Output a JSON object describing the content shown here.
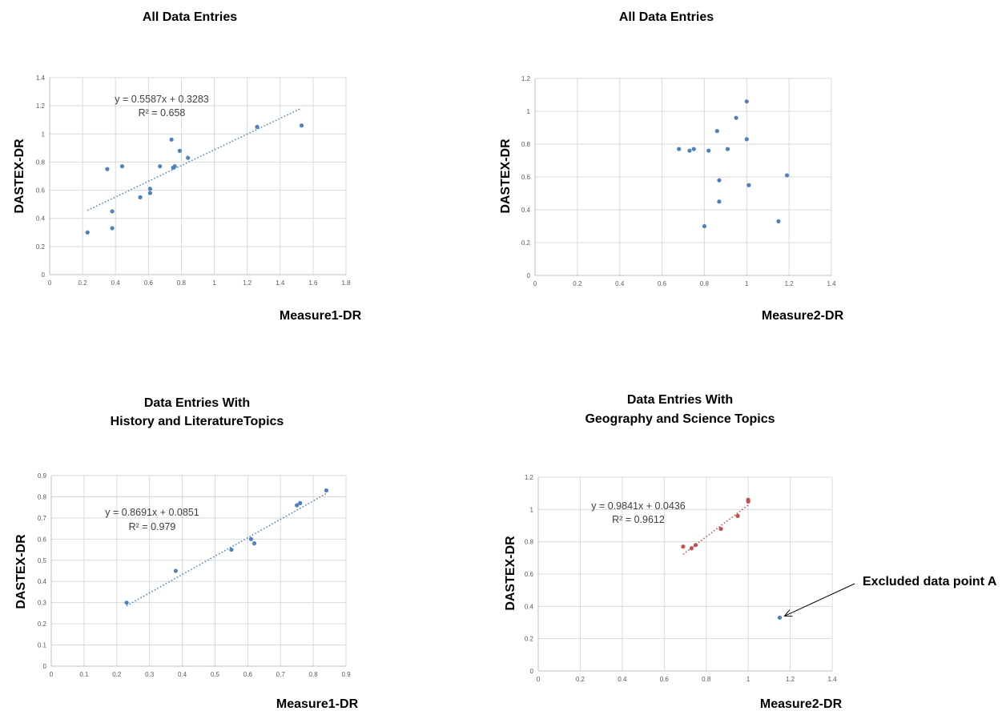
{
  "chart_data": [
    {
      "type": "scatter",
      "title": [
        "All Data Entries"
      ],
      "xlabel": "Measure1-DR",
      "ylabel": "DASTEX-DR",
      "xlim": [
        0,
        1.8
      ],
      "ylim": [
        0,
        1.4
      ],
      "xticks": [
        "0",
        "0.2",
        "0.4",
        "0.6",
        "0.8",
        "1",
        "1.2",
        "1.4",
        "1.6",
        "1.8"
      ],
      "yticks": [
        "0",
        "0.2",
        "0.4",
        "0.6",
        "0.8",
        "1",
        "1.2",
        "1.4"
      ],
      "grid": true,
      "series": [
        {
          "color": "#4f81bd",
          "points": [
            [
              0.23,
              0.3
            ],
            [
              0.35,
              0.75
            ],
            [
              0.38,
              0.33
            ],
            [
              0.38,
              0.45
            ],
            [
              0.44,
              0.77
            ],
            [
              0.55,
              0.55
            ],
            [
              0.61,
              0.61
            ],
            [
              0.61,
              0.58
            ],
            [
              0.67,
              0.77
            ],
            [
              0.74,
              0.96
            ],
            [
              0.75,
              0.76
            ],
            [
              0.76,
              0.77
            ],
            [
              0.79,
              0.88
            ],
            [
              0.84,
              0.83
            ],
            [
              1.26,
              1.05
            ],
            [
              1.53,
              1.06
            ]
          ]
        }
      ],
      "trendline": {
        "slope": 0.5587,
        "intercept": 0.3283,
        "x_from": 0.23,
        "x_to": 1.53,
        "color": "#4f81bd"
      },
      "equation": "y = 0.5587x + 0.3283",
      "r2": "R² = 0.658"
    },
    {
      "type": "scatter",
      "title": [
        "All Data Entries"
      ],
      "xlabel": "Measure2-DR",
      "ylabel": "DASTEX-DR",
      "xlim": [
        0,
        1.4
      ],
      "ylim": [
        0,
        1.2
      ],
      "xticks": [
        "0",
        "0.2",
        "0.4",
        "0.6",
        "0.8",
        "1",
        "1.2",
        "1.4"
      ],
      "yticks": [
        "0",
        "0.2",
        "0.4",
        "0.6",
        "0.8",
        "1",
        "1.2"
      ],
      "grid": true,
      "series": [
        {
          "color": "#4f81bd",
          "points": [
            [
              0.68,
              0.77
            ],
            [
              0.73,
              0.76
            ],
            [
              0.75,
              0.77
            ],
            [
              0.8,
              0.3
            ],
            [
              0.82,
              0.76
            ],
            [
              0.86,
              0.88
            ],
            [
              0.87,
              0.58
            ],
            [
              0.87,
              0.45
            ],
            [
              0.91,
              0.77
            ],
            [
              0.95,
              0.96
            ],
            [
              1.0,
              1.06
            ],
            [
              1.0,
              0.83
            ],
            [
              1.01,
              0.55
            ],
            [
              1.15,
              0.33
            ],
            [
              1.19,
              0.61
            ]
          ]
        }
      ]
    },
    {
      "type": "scatter",
      "title": [
        "Data Entries With",
        "History and LiteratureTopics"
      ],
      "xlabel": "Measure1-DR",
      "ylabel": "DASTEX-DR",
      "xlim": [
        0,
        0.9
      ],
      "ylim": [
        0,
        0.9
      ],
      "xticks": [
        "0",
        "0.1",
        "0.2",
        "0.3",
        "0.4",
        "0.5",
        "0.6",
        "0.7",
        "0.8",
        "0.9"
      ],
      "yticks": [
        "0",
        "0.1",
        "0.2",
        "0.3",
        "0.4",
        "0.5",
        "0.6",
        "0.7",
        "0.8",
        "0.9"
      ],
      "grid": true,
      "series": [
        {
          "color": "#4f81bd",
          "points": [
            [
              0.23,
              0.3
            ],
            [
              0.38,
              0.45
            ],
            [
              0.55,
              0.55
            ],
            [
              0.61,
              0.6
            ],
            [
              0.62,
              0.58
            ],
            [
              0.75,
              0.76
            ],
            [
              0.76,
              0.77
            ],
            [
              0.84,
              0.83
            ]
          ]
        }
      ],
      "trendline": {
        "slope": 0.8691,
        "intercept": 0.0851,
        "x_from": 0.23,
        "x_to": 0.84,
        "color": "#4f81bd"
      },
      "equation": "y = 0.8691x + 0.0851",
      "r2": "R² = 0.979"
    },
    {
      "type": "scatter",
      "title": [
        "Data Entries With",
        "Geography and Science Topics"
      ],
      "xlabel": "Measure2-DR",
      "ylabel": "DASTEX-DR",
      "xlim": [
        0,
        1.4
      ],
      "ylim": [
        0,
        1.2
      ],
      "xticks": [
        "0",
        "0.2",
        "0.4",
        "0.6",
        "0.8",
        "1",
        "1.2",
        "1.4"
      ],
      "yticks": [
        "0",
        "0.2",
        "0.4",
        "0.6",
        "0.8",
        "1",
        "1.2"
      ],
      "grid": true,
      "series": [
        {
          "color": "#c0504d",
          "points": [
            [
              0.69,
              0.77
            ],
            [
              0.73,
              0.76
            ],
            [
              0.75,
              0.78
            ],
            [
              0.87,
              0.88
            ],
            [
              0.95,
              0.96
            ],
            [
              1.0,
              1.06
            ],
            [
              1.0,
              1.05
            ]
          ]
        },
        {
          "color": "#4f81bd",
          "points": [
            [
              1.15,
              0.33
            ]
          ]
        }
      ],
      "trendline": {
        "slope": 0.9841,
        "intercept": 0.0436,
        "x_from": 0.69,
        "x_to": 1.0,
        "color": "#c0504d"
      },
      "equation": "y = 0.9841x + 0.0436",
      "r2": "R² = 0.9612",
      "annotation": {
        "text": "Excluded data point A",
        "target": [
          1.15,
          0.33
        ]
      }
    }
  ]
}
